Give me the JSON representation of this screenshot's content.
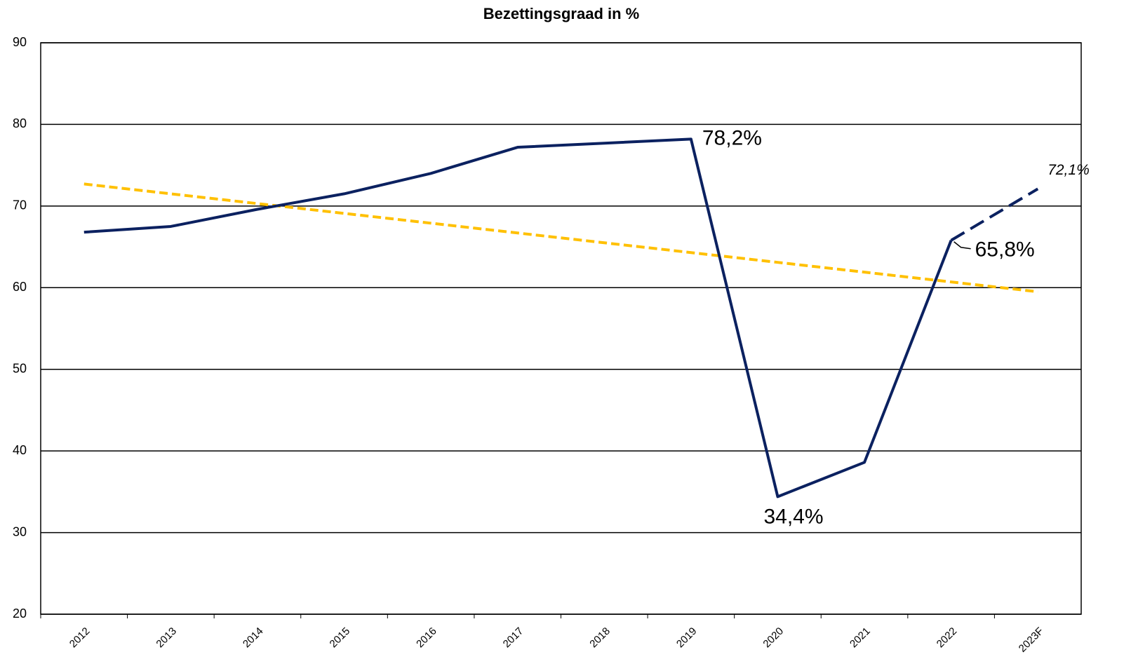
{
  "chart_data": {
    "type": "line",
    "title": "Bezettingsgraad in %",
    "categories": [
      "2012",
      "2013",
      "2014",
      "2015",
      "2016",
      "2017",
      "2018",
      "2019",
      "2020",
      "2021",
      "2022",
      "2023F"
    ],
    "series": [
      {
        "color": "#0b2160",
        "dashed": false,
        "values": [
          66.8,
          67.5,
          69.6,
          71.5,
          74.0,
          77.2,
          77.7,
          78.2,
          34.4,
          38.6,
          65.8,
          null
        ],
        "value_labels": [
          null,
          null,
          null,
          null,
          null,
          null,
          null,
          "78,2%",
          "34,4%",
          null,
          "65,8%",
          null
        ]
      },
      {
        "color": "#0b2160",
        "dashed": true,
        "label_italic": true,
        "values": [
          null,
          null,
          null,
          null,
          null,
          null,
          null,
          null,
          null,
          null,
          65.8,
          72.1
        ],
        "value_labels": [
          null,
          null,
          null,
          null,
          null,
          null,
          null,
          null,
          null,
          null,
          null,
          "72,1%"
        ]
      },
      {
        "color": "#ffc000",
        "dashed": true,
        "values": [
          72.7,
          71.5,
          70.3,
          69.1,
          67.9,
          66.7,
          65.5,
          64.3,
          63.1,
          61.9,
          60.7,
          59.5
        ]
      }
    ],
    "ylim": [
      20,
      90
    ],
    "yticks": [
      20,
      30,
      40,
      50,
      60,
      70,
      80,
      90
    ],
    "grid": true
  }
}
